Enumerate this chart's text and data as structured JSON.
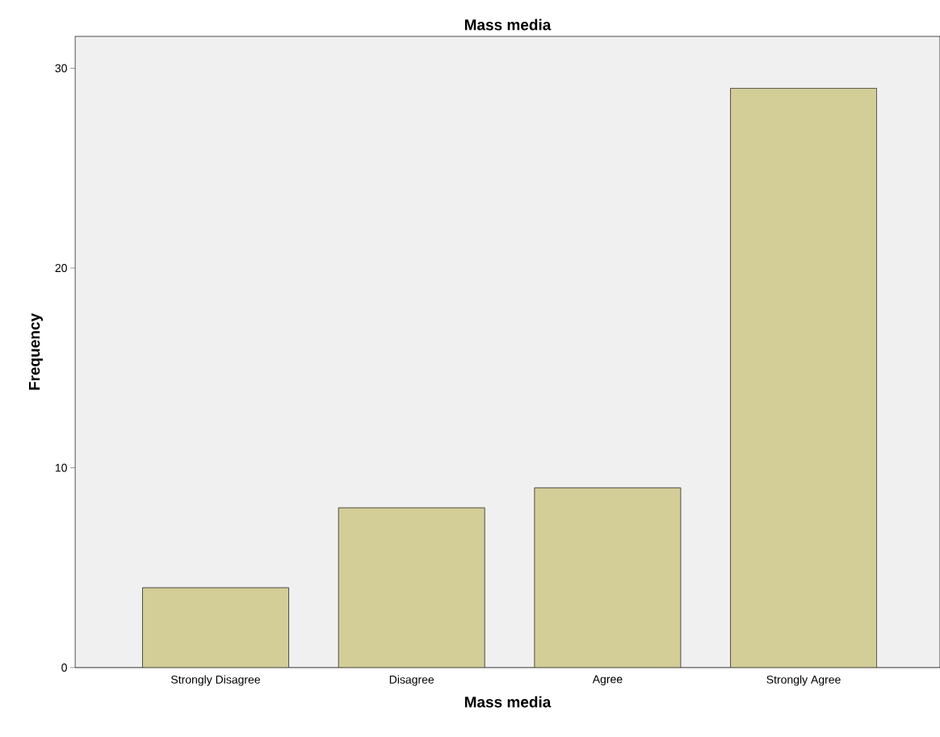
{
  "chart_data": {
    "type": "bar",
    "title": "Mass media",
    "xlabel": "Mass media",
    "ylabel": "Frequency",
    "categories": [
      "Strongly Disagree",
      "Disagree",
      "Agree",
      "Strongly Agree"
    ],
    "values": [
      4,
      8,
      9,
      29
    ],
    "color": "#d3ce97",
    "ylim": [
      0,
      31.6
    ],
    "yticks": [
      0,
      10,
      20,
      30
    ],
    "grid": false
  }
}
